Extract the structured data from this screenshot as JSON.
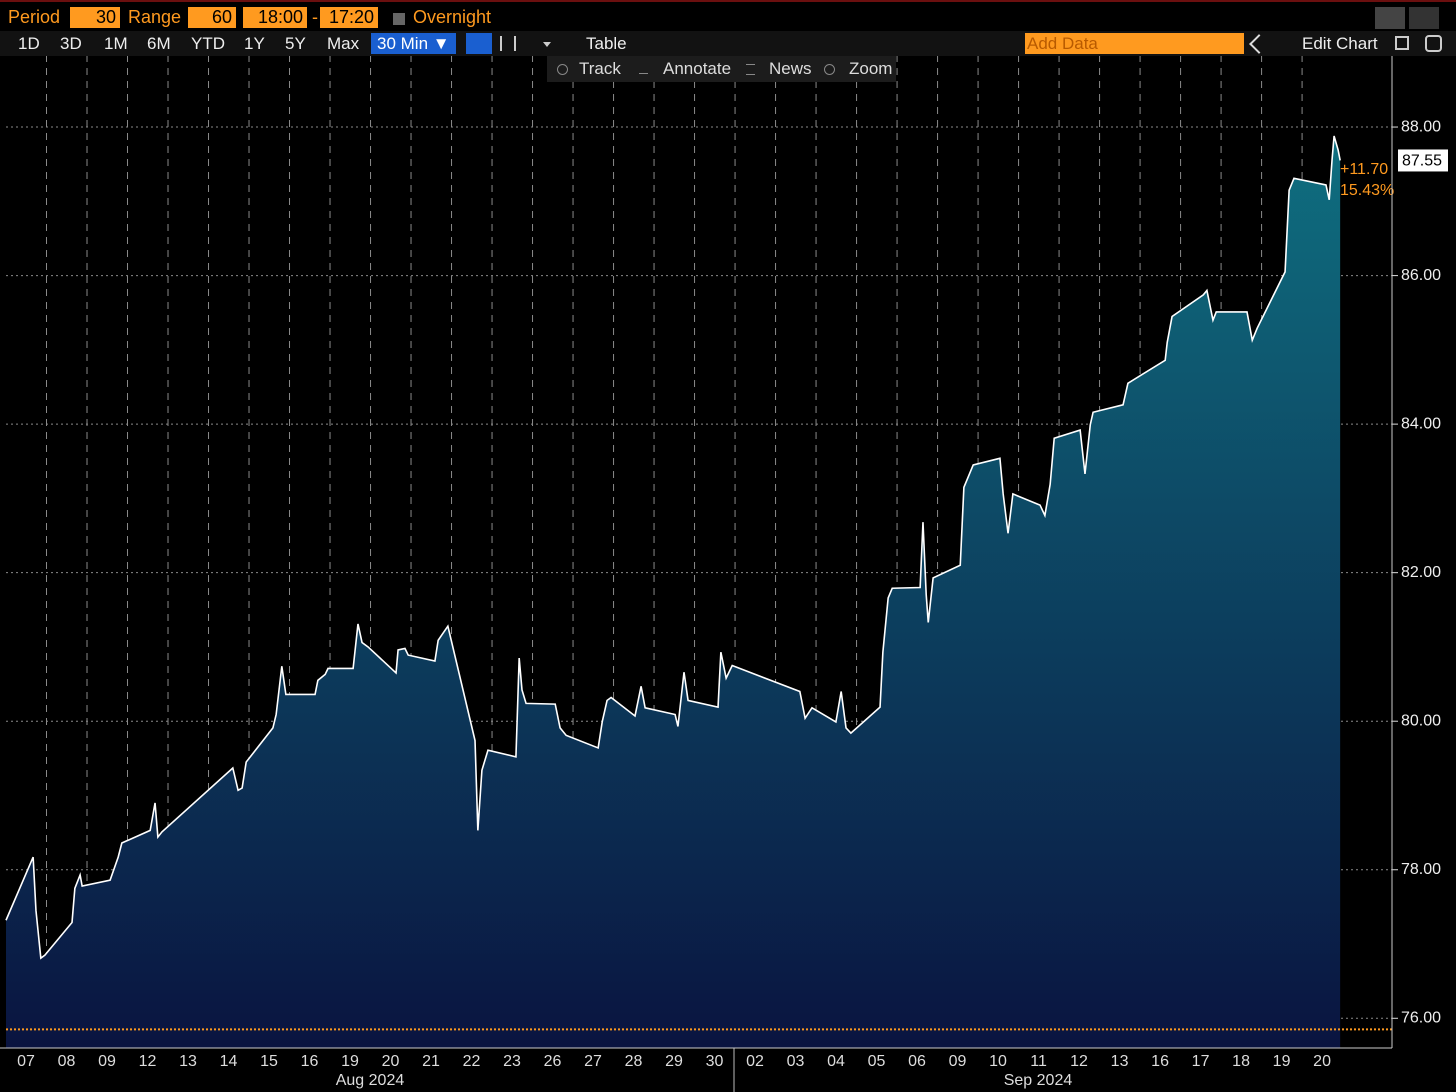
{
  "toolbar": {
    "period_label": "Period",
    "period": "30",
    "range_label": "Range",
    "range": "60",
    "start_time": "18:00",
    "separator": "-",
    "end_time": "17:20",
    "overnight": "Overnight",
    "ranges": [
      "1D",
      "3D",
      "1M",
      "6M",
      "YTD",
      "1Y",
      "5Y",
      "Max"
    ],
    "interval": "30 Min ▼",
    "table": "Table",
    "add_data": "Add Data",
    "edit_chart": "Edit Chart"
  },
  "chart_tools": [
    "Track",
    "Annotate",
    "News",
    "Zoom"
  ],
  "chart_data": {
    "type": "area",
    "x": [
      0,
      0.67,
      0.74,
      0.86,
      0.96,
      1.63,
      1.7,
      1.83,
      1.88,
      2.57,
      2.77,
      2.86,
      3.56,
      3.68,
      3.75,
      3.85,
      5.6,
      5.73,
      5.83,
      5.93,
      6.59,
      6.67,
      6.81,
      6.91,
      7.63,
      7.7,
      7.88,
      7.95,
      8.57,
      8.69,
      8.79,
      8.94,
      9.63,
      9.68,
      9.85,
      9.93,
      10.59,
      10.67,
      10.91,
      11.58,
      11.65,
      11.75,
      11.9,
      12.59,
      12.67,
      12.74,
      12.84,
      13.56,
      13.68,
      13.83,
      14.62,
      14.72,
      14.84,
      14.94,
      15.53,
      15.68,
      15.78,
      16.52,
      16.59,
      16.74,
      16.84,
      17.58,
      17.65,
      17.78,
      17.93,
      19.6,
      19.73,
      19.9,
      20.49,
      20.62,
      20.74,
      20.86,
      21.58,
      21.65,
      21.78,
      21.88,
      22.57,
      22.64,
      22.72,
      22.77,
      22.89,
      23.56,
      23.65,
      23.88,
      24.54,
      24.62,
      24.74,
      24.86,
      25.53,
      25.65,
      25.78,
      25.88,
      26.52,
      26.64,
      26.77,
      26.84,
      27.58,
      27.7,
      28.62,
      28.67,
      28.79,
      29.56,
      29.65,
      29.8,
      29.88,
      30.64,
      30.77,
      30.89,
      31.58,
      31.68,
      31.8,
      32.59,
      32.67,
      32.74,
      32.79,
      32.89,
      32.94
    ],
    "series": [
      {
        "color": "#ffffff",
        "values": [
          77.32,
          78.17,
          77.45,
          76.81,
          76.85,
          77.29,
          77.75,
          77.93,
          77.78,
          77.86,
          78.17,
          78.36,
          78.53,
          78.9,
          78.44,
          78.51,
          79.37,
          79.07,
          79.1,
          79.45,
          79.91,
          80.09,
          80.74,
          80.36,
          80.36,
          80.55,
          80.63,
          80.71,
          80.71,
          81.31,
          81.06,
          81.0,
          80.65,
          80.96,
          80.98,
          80.89,
          80.81,
          81.09,
          81.28,
          79.74,
          78.53,
          79.34,
          79.61,
          79.52,
          80.85,
          80.42,
          80.24,
          80.23,
          79.91,
          79.81,
          79.64,
          79.99,
          80.28,
          80.32,
          80.07,
          80.47,
          80.18,
          80.09,
          79.93,
          80.66,
          80.28,
          80.19,
          80.93,
          80.58,
          80.75,
          80.4,
          80.04,
          80.18,
          79.99,
          80.4,
          79.91,
          79.84,
          80.19,
          80.93,
          81.66,
          81.79,
          81.8,
          82.68,
          81.7,
          81.33,
          81.93,
          82.1,
          83.15,
          83.45,
          83.54,
          83.06,
          82.53,
          83.06,
          82.91,
          82.77,
          83.19,
          83.81,
          83.92,
          83.33,
          83.99,
          84.16,
          84.26,
          84.55,
          84.86,
          85.1,
          85.45,
          85.74,
          85.8,
          85.4,
          85.51,
          85.51,
          85.13,
          85.29,
          86.05,
          87.15,
          87.31,
          87.22,
          87.02,
          87.56,
          87.88,
          87.69,
          87.55
        ]
      }
    ],
    "area_gradient": [
      "#0f6f80",
      "#0a1440"
    ],
    "reference_line": {
      "value": 75.85,
      "color": "#ff9a1f"
    },
    "annotations": [
      "+11.70",
      "15.43%"
    ],
    "xlim": [
      0,
      34.22
    ],
    "xticks": [
      {
        "value": 0,
        "label": "07"
      },
      {
        "value": 1,
        "label": "08"
      },
      {
        "value": 2,
        "label": "09"
      },
      {
        "value": 3,
        "label": "12"
      },
      {
        "value": 4,
        "label": "13"
      },
      {
        "value": 5,
        "label": "14"
      },
      {
        "value": 6,
        "label": "15"
      },
      {
        "value": 7,
        "label": "16"
      },
      {
        "value": 8,
        "label": "19"
      },
      {
        "value": 9,
        "label": "20"
      },
      {
        "value": 10,
        "label": "21"
      },
      {
        "value": 11,
        "label": "22"
      },
      {
        "value": 12,
        "label": "23"
      },
      {
        "value": 13,
        "label": "26"
      },
      {
        "value": 14,
        "label": "27"
      },
      {
        "value": 15,
        "label": "28"
      },
      {
        "value": 16,
        "label": "29"
      },
      {
        "value": 17,
        "label": "30"
      },
      {
        "value": 18,
        "label": "02"
      },
      {
        "value": 19,
        "label": "03"
      },
      {
        "value": 20,
        "label": "04"
      },
      {
        "value": 21,
        "label": "05"
      },
      {
        "value": 22,
        "label": "06"
      },
      {
        "value": 23,
        "label": "09"
      },
      {
        "value": 24,
        "label": "10"
      },
      {
        "value": 25,
        "label": "11"
      },
      {
        "value": 26,
        "label": "12"
      },
      {
        "value": 27,
        "label": "13"
      },
      {
        "value": 28,
        "label": "16"
      },
      {
        "value": 29,
        "label": "17"
      },
      {
        "value": 30,
        "label": "18"
      },
      {
        "value": 31,
        "label": "19"
      },
      {
        "value": 32,
        "label": "20"
      }
    ],
    "month_labels": [
      "Aug 2024",
      "Sep 2024"
    ],
    "ylim": [
      75.6,
      88.97
    ],
    "yticks": [
      {
        "value": 76,
        "label": "76.00"
      },
      {
        "value": 78,
        "label": "78.00"
      },
      {
        "value": 80,
        "label": "80.00"
      },
      {
        "value": 82,
        "label": "82.00"
      },
      {
        "value": 84,
        "label": "84.00"
      },
      {
        "value": 86,
        "label": "86.00"
      },
      {
        "value": 88,
        "label": "88.00"
      }
    ],
    "grid": true
  }
}
